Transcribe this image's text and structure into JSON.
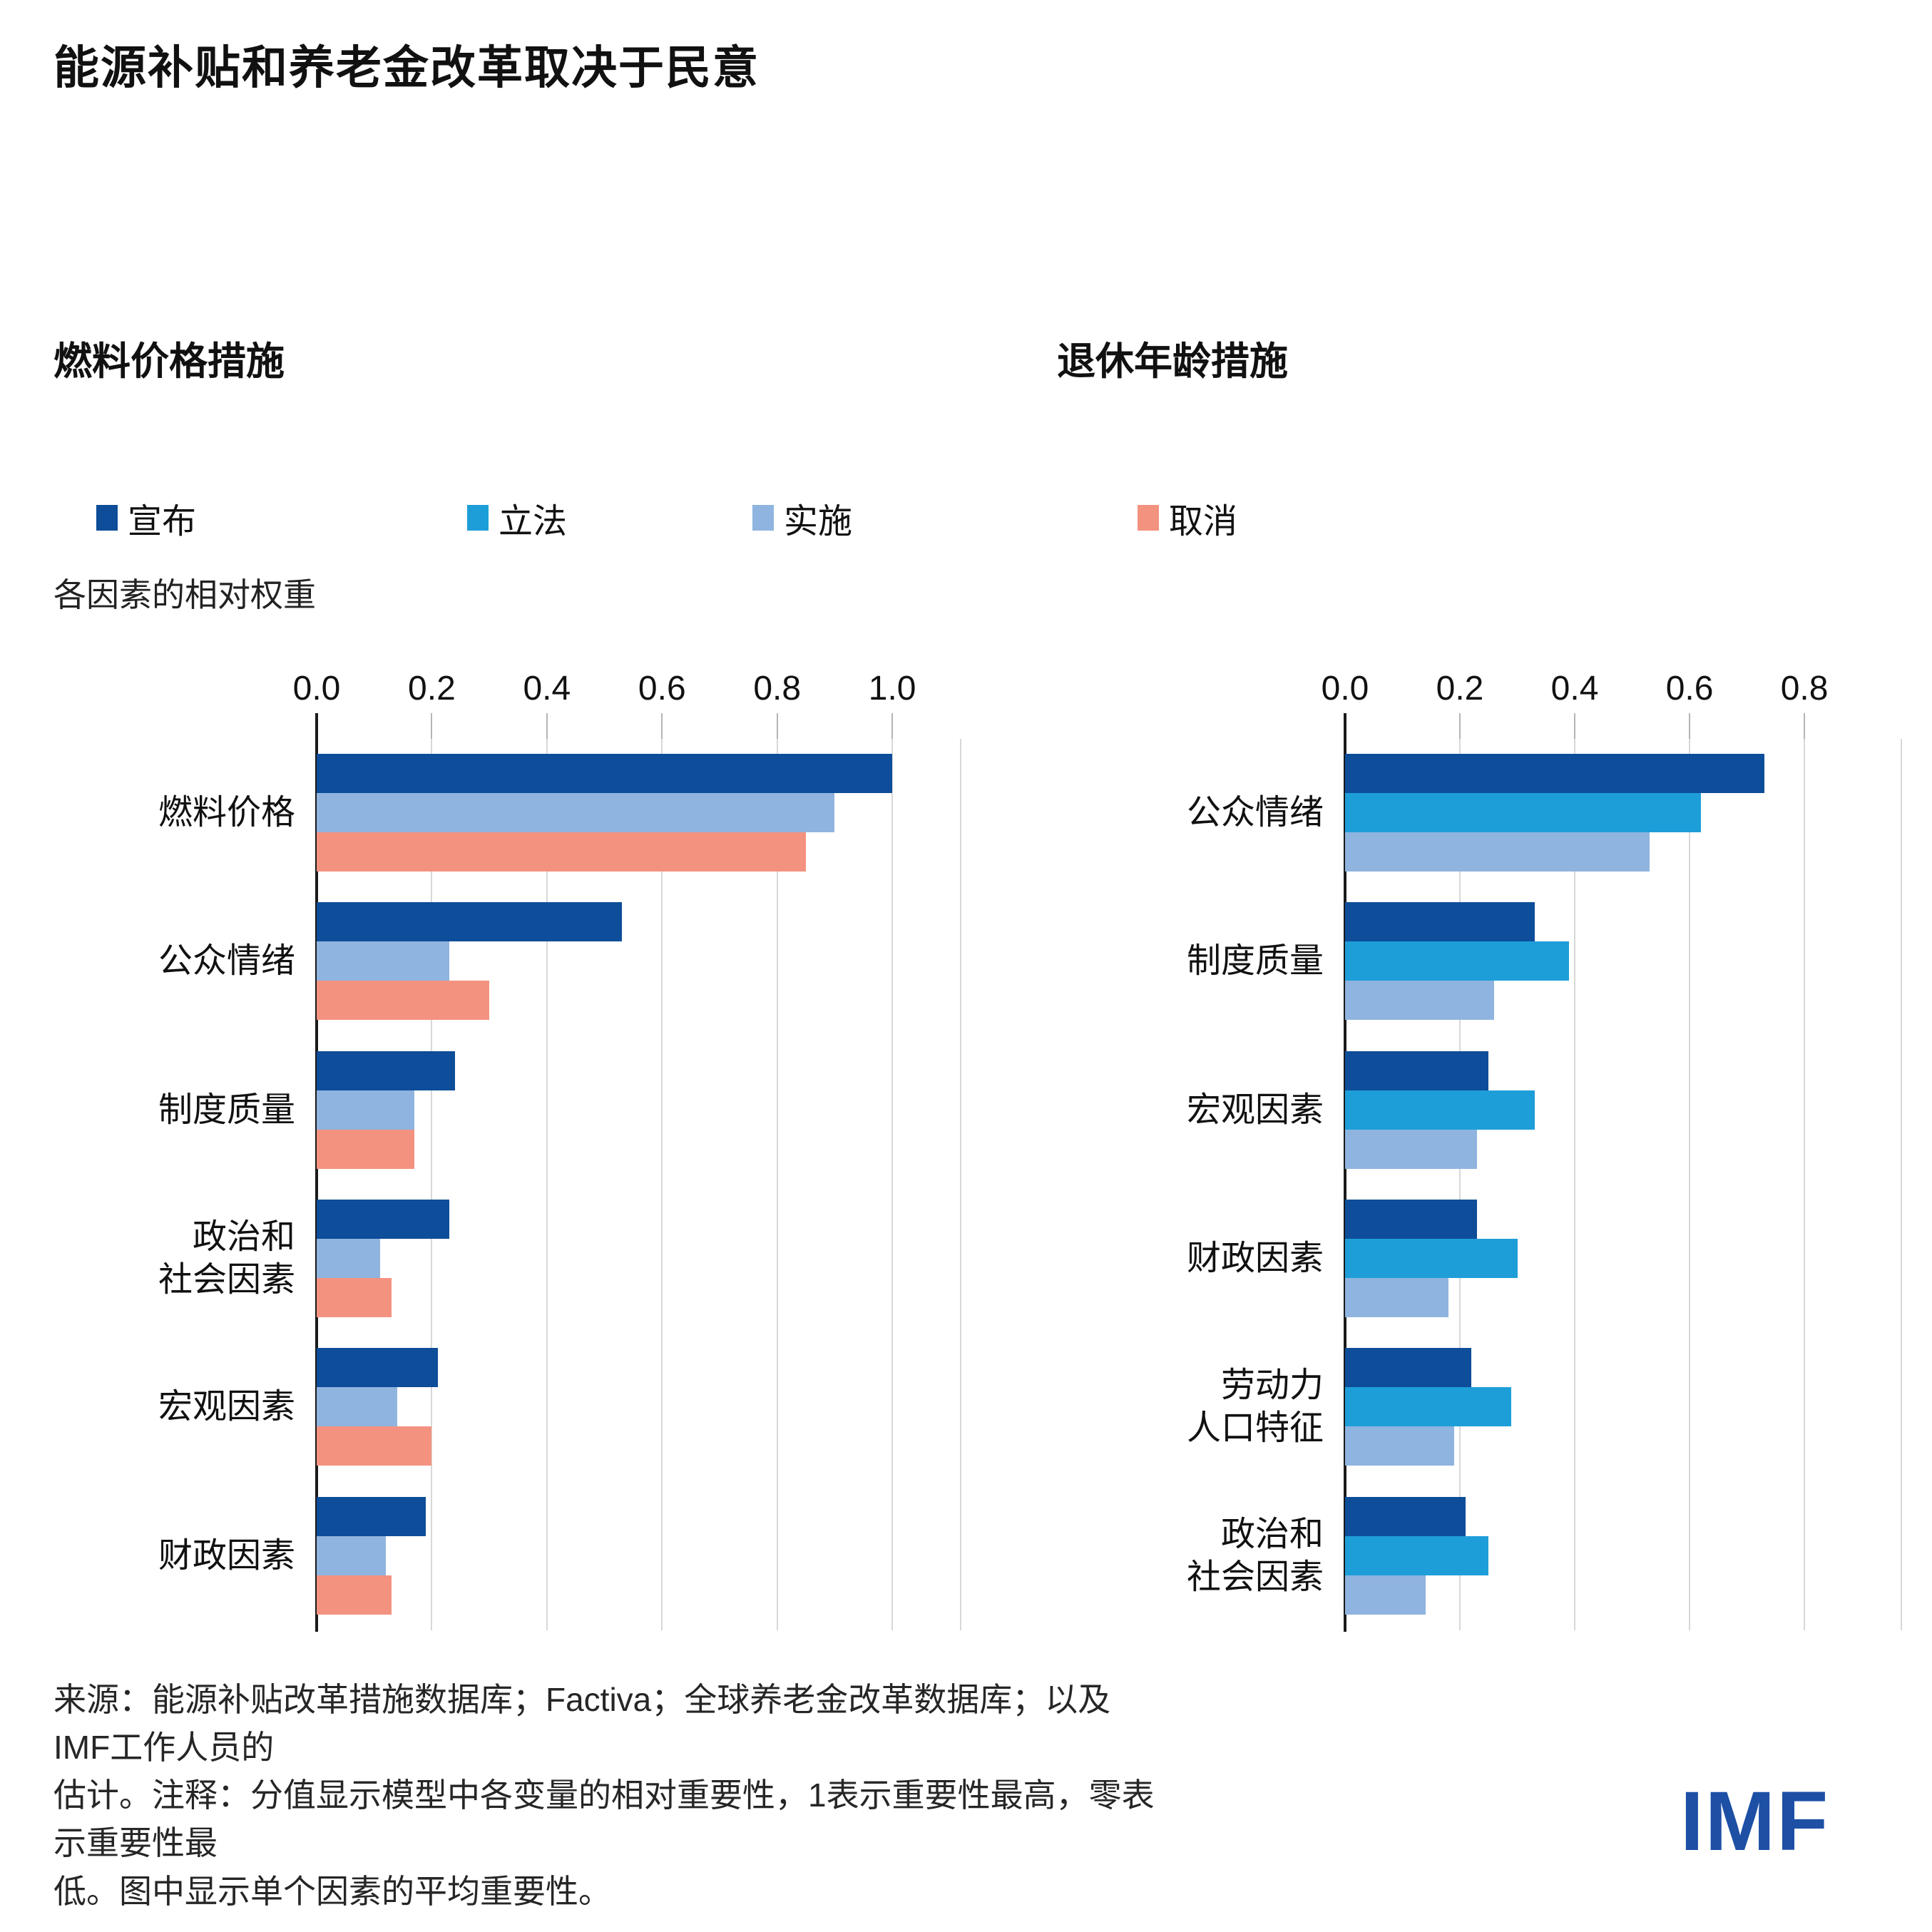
{
  "title": "能源补贴和养老金改革取决于民意",
  "axis_note": "各因素的相对权重",
  "legend": [
    {
      "key": "announced",
      "label": "宣布",
      "color": "#0d4d99"
    },
    {
      "key": "legislated",
      "label": "立法",
      "color": "#1e9ed9"
    },
    {
      "key": "implemented",
      "label": "实施",
      "color": "#8fb4df"
    },
    {
      "key": "cancelled",
      "label": "取消",
      "color": "#f49280"
    }
  ],
  "chart_data": [
    {
      "type": "bar",
      "orientation": "horizontal",
      "title": "燃料价格措施",
      "categories": [
        "燃料价格",
        "公众情绪",
        "制度质量",
        "政治和\n社会因素",
        "宏观因素",
        "财政因素"
      ],
      "series": [
        {
          "name": "宣布",
          "color_key": "announced",
          "values": [
            1.0,
            0.53,
            0.24,
            0.23,
            0.21,
            0.19
          ]
        },
        {
          "name": "实施",
          "color_key": "implemented",
          "values": [
            0.9,
            0.23,
            0.17,
            0.11,
            0.14,
            0.12
          ]
        },
        {
          "name": "取消",
          "color_key": "cancelled",
          "values": [
            0.85,
            0.3,
            0.17,
            0.13,
            0.2,
            0.13
          ]
        }
      ],
      "ticks": [
        "0.0",
        "0.2",
        "0.4",
        "0.6",
        "0.8",
        "1.0"
      ],
      "tick_values": [
        0,
        0.2,
        0.4,
        0.6,
        0.8,
        1.0
      ],
      "xlim": [
        0,
        1.12
      ],
      "grid": true,
      "legend_position": "top"
    },
    {
      "type": "bar",
      "orientation": "horizontal",
      "title": "退休年龄措施",
      "categories": [
        "公众情绪",
        "制度质量",
        "宏观因素",
        "财政因素",
        "劳动力\n人口特征",
        "政治和\n社会因素"
      ],
      "series": [
        {
          "name": "宣布",
          "color_key": "announced",
          "values": [
            0.73,
            0.33,
            0.25,
            0.23,
            0.22,
            0.21
          ]
        },
        {
          "name": "立法",
          "color_key": "legislated",
          "values": [
            0.62,
            0.39,
            0.33,
            0.3,
            0.29,
            0.25
          ]
        },
        {
          "name": "实施",
          "color_key": "implemented",
          "values": [
            0.53,
            0.26,
            0.23,
            0.18,
            0.19,
            0.14
          ]
        }
      ],
      "ticks": [
        "0.0",
        "0.2",
        "0.4",
        "0.6",
        "0.8"
      ],
      "tick_values": [
        0,
        0.2,
        0.4,
        0.6,
        0.8
      ],
      "xlim": [
        0,
        0.97
      ],
      "grid": true,
      "legend_position": "top"
    }
  ],
  "source_note": {
    "text": "来源：能源补贴改革措施数据库；Factiva；全球养老金改革数据库；以及IMF工作人员的\n估计。注释：分值显示模型中各变量的相对重要性，1表示重要性最高，零表示重要性最\n低。图中显示单个因素的平均重要性。"
  },
  "logo": {
    "text": "IMF",
    "color": "#1d4fa5"
  }
}
